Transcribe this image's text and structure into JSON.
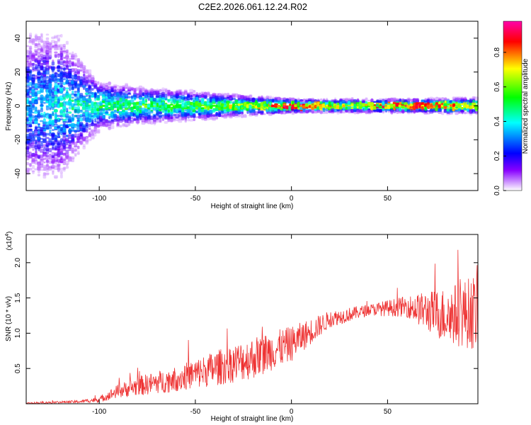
{
  "title": "C2E2.2026.061.12.24.R02",
  "colors": {
    "signal_red": "#ee3333",
    "spectrum_low": "#ffffff",
    "spectrum_violet": "#8800ff",
    "spectrum_blue": "#0000ff",
    "spectrum_cyan": "#00ffff",
    "spectrum_green": "#00ff00",
    "spectrum_yellow": "#ffff00",
    "spectrum_red": "#ff0000",
    "spectrum_high": "#ff00aa"
  },
  "chart_data": [
    {
      "type": "heatmap",
      "xlabel": "Height of straight line (km)",
      "ylabel": "Frequency (Hz)",
      "xlim": [
        -138,
        97
      ],
      "ylim": [
        -50,
        50
      ],
      "xticks": [
        -100,
        -50,
        0,
        50
      ],
      "yticks": [
        -40,
        -20,
        0,
        20,
        40
      ],
      "colorbar": {
        "label": "Normalized spectral amplitude",
        "range": [
          0,
          0.98
        ],
        "ticks": [
          0.0,
          0.2,
          0.4,
          0.6,
          0.8
        ]
      },
      "profile": [
        {
          "x": -138,
          "bandwidth": 50,
          "peak": 0.35
        },
        {
          "x": -120,
          "bandwidth": 48,
          "peak": 0.4
        },
        {
          "x": -110,
          "bandwidth": 30,
          "peak": 0.45
        },
        {
          "x": -100,
          "bandwidth": 16,
          "peak": 0.5
        },
        {
          "x": -80,
          "bandwidth": 12,
          "peak": 0.55
        },
        {
          "x": -60,
          "bandwidth": 10,
          "peak": 0.58
        },
        {
          "x": -40,
          "bandwidth": 8,
          "peak": 0.62
        },
        {
          "x": -20,
          "bandwidth": 6,
          "peak": 0.66
        },
        {
          "x": 0,
          "bandwidth": 4,
          "peak": 0.98
        },
        {
          "x": 20,
          "bandwidth": 4,
          "peak": 0.72
        },
        {
          "x": 40,
          "bandwidth": 4,
          "peak": 0.72
        },
        {
          "x": 65,
          "bandwidth": 4,
          "peak": 0.95
        },
        {
          "x": 97,
          "bandwidth": 5,
          "peak": 0.7
        }
      ]
    },
    {
      "type": "line",
      "xlabel": "Height of straight line (km)",
      "ylabel": "SNR (10 * v/v)",
      "y_multiplier": "(x10",
      "y_multiplier_exp": "4",
      "xlim": [
        -138,
        97
      ],
      "ylim": [
        0,
        2.4
      ],
      "xticks": [
        -100,
        -50,
        0,
        50
      ],
      "yticks": [
        0.5,
        1.0,
        1.5,
        2.0
      ],
      "series": [
        {
          "color": "#ee3333",
          "envelope": [
            {
              "x": -138,
              "mean": 0.01,
              "amp": 0.01
            },
            {
              "x": -110,
              "mean": 0.03,
              "amp": 0.02
            },
            {
              "x": -100,
              "mean": 0.06,
              "amp": 0.04
            },
            {
              "x": -90,
              "mean": 0.18,
              "amp": 0.1
            },
            {
              "x": -80,
              "mean": 0.25,
              "amp": 0.14
            },
            {
              "x": -60,
              "mean": 0.35,
              "amp": 0.18
            },
            {
              "x": -40,
              "mean": 0.5,
              "amp": 0.25
            },
            {
              "x": -20,
              "mean": 0.65,
              "amp": 0.3
            },
            {
              "x": 0,
              "mean": 0.85,
              "amp": 0.25
            },
            {
              "x": 20,
              "mean": 1.2,
              "amp": 0.12
            },
            {
              "x": 40,
              "mean": 1.33,
              "amp": 0.08
            },
            {
              "x": 60,
              "mean": 1.38,
              "amp": 0.15
            },
            {
              "x": 80,
              "mean": 1.25,
              "amp": 0.4
            },
            {
              "x": 97,
              "mean": 1.3,
              "amp": 0.55
            }
          ]
        }
      ]
    }
  ]
}
